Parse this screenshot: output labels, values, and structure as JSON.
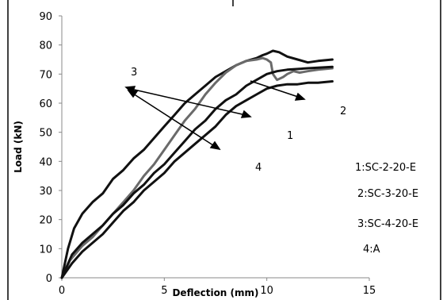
{
  "chart_data": {
    "type": "line",
    "title": "",
    "xlabel": "Deflection (mm)",
    "ylabel": "Load (kN)",
    "xlim": [
      0,
      15
    ],
    "ylim": [
      0,
      90
    ],
    "xticks": [
      0,
      5,
      10,
      15
    ],
    "yticks": [
      0,
      10,
      20,
      30,
      40,
      50,
      60,
      70,
      80,
      90
    ],
    "grid": false,
    "legend_position": "right",
    "legend": [
      "1:SC-2-20-E",
      "2:SC-3-20-E",
      "3:SC-4-20-E",
      "4:A"
    ],
    "annotations": [
      "3",
      "2",
      "1",
      "4"
    ],
    "series": [
      {
        "color": "#111111",
        "x": [
          0,
          0.3,
          0.6,
          1.0,
          1.5,
          2.0,
          2.5,
          3.0,
          3.5,
          4.0,
          4.5,
          5.0,
          5.5,
          6.0,
          6.5,
          7.0,
          7.5,
          8.0,
          8.5,
          9.0,
          9.5,
          9.8,
          10.0,
          10.3,
          10.6,
          11.0,
          11.5,
          12.0,
          12.5,
          13.2
        ],
        "y": [
          0,
          10,
          17,
          22,
          26,
          29,
          34,
          37,
          41,
          44,
          48,
          52,
          56,
          60,
          63,
          66,
          69,
          71,
          73,
          74.5,
          75.5,
          76.5,
          77,
          78,
          77.5,
          76,
          75,
          74,
          74.5,
          75
        ]
      },
      {
        "color": "#6a6a6a",
        "x": [
          0,
          0.4,
          1.0,
          1.5,
          2.0,
          2.5,
          3.0,
          3.5,
          4.0,
          4.5,
          5.0,
          5.5,
          6.0,
          6.5,
          7.0,
          7.5,
          8.0,
          8.5,
          9.0,
          9.5,
          9.8,
          10.0,
          10.2,
          10.3,
          10.5,
          10.8,
          11.0,
          11.3,
          11.6,
          12.0,
          12.5,
          13.2
        ],
        "y": [
          0,
          6,
          11,
          14,
          18,
          22,
          26,
          30,
          35,
          39,
          44,
          49,
          54,
          58,
          63,
          67,
          70.5,
          73,
          74.5,
          75,
          75.5,
          75,
          74,
          70,
          68,
          69,
          70,
          71,
          70.5,
          71,
          71.5,
          72
        ]
      },
      {
        "color": "#111111",
        "x": [
          0,
          0.5,
          1.0,
          1.5,
          2.0,
          2.5,
          3.0,
          3.5,
          4.0,
          4.5,
          5.0,
          5.5,
          6.0,
          6.5,
          7.0,
          7.5,
          8.0,
          8.5,
          9.0,
          9.5,
          10.0,
          10.5,
          11.0,
          12.0,
          13.2
        ],
        "y": [
          0,
          8,
          12,
          15,
          18,
          22,
          25,
          29,
          32,
          36,
          39,
          43,
          47,
          51,
          54,
          58,
          61,
          63,
          66,
          68,
          70,
          71,
          71.5,
          72,
          72.5
        ]
      },
      {
        "color": "#111111",
        "x": [
          0,
          0.5,
          1.0,
          1.5,
          2.0,
          2.5,
          3.0,
          3.5,
          4.0,
          4.5,
          5.0,
          5.5,
          6.0,
          6.5,
          7.0,
          7.5,
          8.0,
          8.5,
          9.0,
          9.5,
          10.0,
          10.5,
          11.0,
          11.5,
          12.0,
          12.5,
          13.2
        ],
        "y": [
          0,
          5,
          9,
          12,
          15,
          19,
          23,
          26,
          30,
          33,
          36,
          40,
          43,
          46,
          49,
          52,
          56,
          59,
          61,
          63,
          65,
          66,
          66.5,
          66.5,
          67,
          67,
          67.5
        ]
      }
    ]
  }
}
